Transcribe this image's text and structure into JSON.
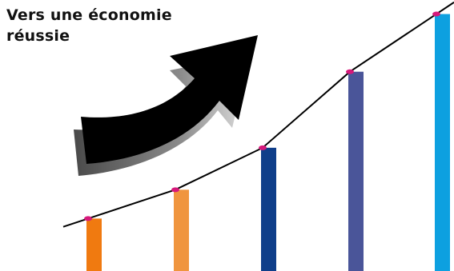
{
  "caption": {
    "line1": "Vers une économie",
    "line2": "réussie"
  },
  "chart_data": {
    "type": "bar",
    "title": "",
    "xlabel": "",
    "ylabel": "",
    "ylim": [
      0,
      10
    ],
    "values": [
      2.0,
      3.1,
      4.7,
      7.6,
      9.8
    ],
    "colors": [
      "#F07A10",
      "#F0953E",
      "#0F3E8A",
      "#4A5599",
      "#0DA0E0"
    ],
    "trend": {
      "values": [
        2.0,
        3.1,
        4.7,
        7.6,
        9.8
      ],
      "line_color": "#000000",
      "marker_color": "#D6197B"
    },
    "grid": false,
    "legend": "none"
  },
  "decoration": {
    "arrow_color": "#000000",
    "arrow_shadow_color": "#9a9a9a"
  }
}
